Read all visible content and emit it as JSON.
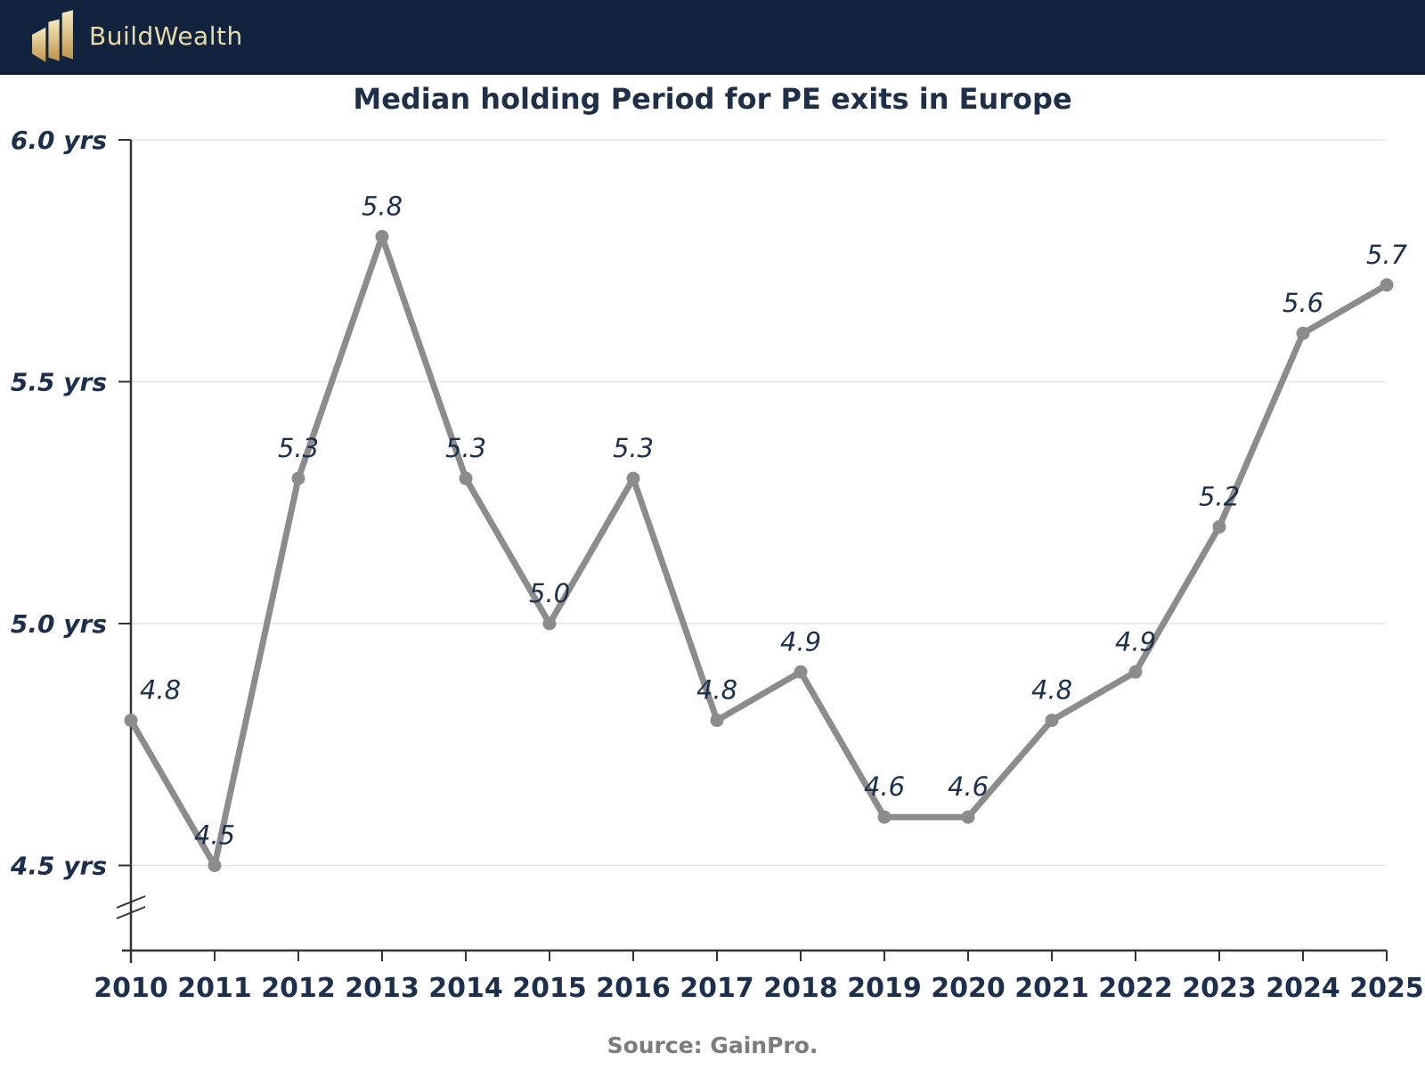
{
  "header": {
    "brand": "BuildWealth"
  },
  "title": "Median holding Period for PE exits in Europe",
  "source": "Source: GainPro.",
  "chart_data": {
    "type": "line",
    "title": "Median holding Period for PE exits in Europe",
    "categories": [
      "2010",
      "2011",
      "2012",
      "2013",
      "2014",
      "2015",
      "2016",
      "2017",
      "2018",
      "2019",
      "2020",
      "2021",
      "2022",
      "2023",
      "2024",
      "2025"
    ],
    "values": [
      4.8,
      4.5,
      5.3,
      5.8,
      5.3,
      5.0,
      5.3,
      4.8,
      4.9,
      4.6,
      4.6,
      4.8,
      4.9,
      5.2,
      5.6,
      5.7
    ],
    "unit": "yrs",
    "ylim": [
      4.5,
      6.0
    ],
    "yticks": [
      {
        "value": 6.0,
        "label": "6.0 yrs"
      },
      {
        "value": 5.5,
        "label": "5.5 yrs"
      },
      {
        "value": 5.0,
        "label": "5.0 yrs"
      },
      {
        "value": 4.5,
        "label": "4.5 yrs"
      }
    ],
    "axis_break": true,
    "grid": "horizontal",
    "legend": "none",
    "point_labels": [
      "4.8",
      "4.5",
      "5.3",
      "5.8",
      "5.3",
      "5.0",
      "5.3",
      "4.8",
      "4.9",
      "4.6",
      "4.6",
      "4.8",
      "4.9",
      "5.2",
      "5.6",
      "5.7"
    ],
    "colors": {
      "line": "#8c8c8c",
      "marker": "#8c8c8c",
      "text": "#1c2f4d",
      "axis": "#333333",
      "grid": "#dfe7f1",
      "header_bg": "#12233e",
      "brand_gold": "#e8dcab",
      "source_gray": "#7c7c7c"
    }
  }
}
